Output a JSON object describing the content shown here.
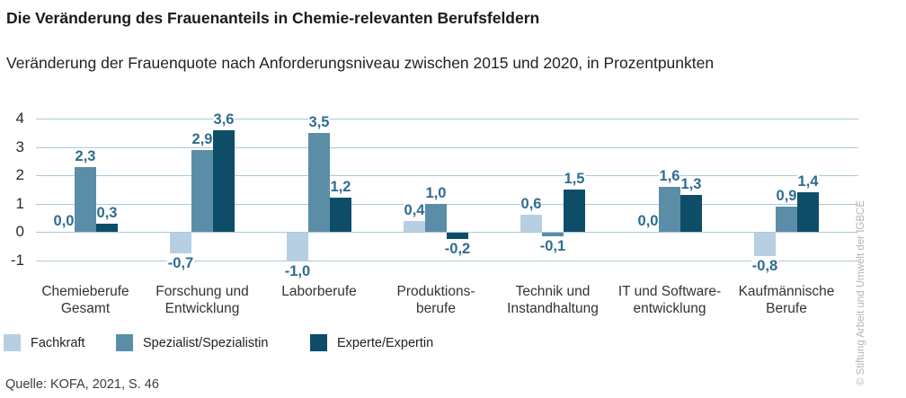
{
  "header": {
    "title": "Die Veränderung des Frauenanteils in Chemie-relevanten Berufsfeldern",
    "subtitle": "Veränderung der Frauenquote nach Anforderungsniveau zwischen 2015 und 2020, in Prozentpunkten"
  },
  "chart_data": {
    "type": "bar",
    "title": "Die Veränderung des Frauenanteils in Chemie-relevanten Berufsfeldern",
    "subtitle": "Veränderung der Frauenquote nach Anforderungsniveau zwischen 2015 und 2020, in Prozentpunkten",
    "categories": [
      "Chemieberufe Gesamt",
      "Forschung und Entwicklung",
      "Laborberufe",
      "Produktionsberufe",
      "Technik und Instandhaltung",
      "IT und Softwareentwicklung",
      "Kaufmännische Berufe"
    ],
    "category_lines": [
      [
        "Chemieberufe",
        "Gesamt"
      ],
      [
        "Forschung und",
        "Entwicklung"
      ],
      [
        "Laborberufe"
      ],
      [
        "Produktions-",
        "berufe"
      ],
      [
        "Technik und",
        "Instandhaltung"
      ],
      [
        "IT und Software-",
        "entwicklung"
      ],
      [
        "Kaufmännische",
        "Berufe"
      ]
    ],
    "series": [
      {
        "name": "Fachkraft",
        "color": "#b7cfe3",
        "values": [
          0.0,
          -0.7,
          -1.0,
          0.4,
          0.6,
          0.0,
          -0.8
        ],
        "labels": [
          "0,0",
          "-0,7",
          "-1,0",
          "0,4",
          "0,6",
          "0,0",
          "-0,8"
        ]
      },
      {
        "name": "Spezialist/Spezialistin",
        "color": "#5b8ea6",
        "values": [
          2.3,
          2.9,
          3.5,
          1.0,
          -0.1,
          1.6,
          0.9
        ],
        "labels": [
          "2,3",
          "2,9",
          "3,5",
          "1,0",
          "-0,1",
          "1,6",
          "0,9"
        ]
      },
      {
        "name": "Experte/Expertin",
        "color": "#0e4d68",
        "values": [
          0.3,
          3.6,
          1.2,
          -0.2,
          1.5,
          1.3,
          1.4
        ],
        "labels": [
          "0,3",
          "3,6",
          "1,2",
          "-0,2",
          "1,5",
          "1,3",
          "1,4"
        ]
      }
    ],
    "ylim": [
      -1,
      4
    ],
    "yticks": [
      4,
      3,
      2,
      1,
      0,
      -1
    ],
    "ytick_labels": [
      "4",
      "3",
      "2",
      "1",
      "0",
      "-1"
    ],
    "grid": true,
    "grid_color": "#aac9da",
    "value_label_color": "#2e6d8e",
    "legend_position": "bottom"
  },
  "source": "Quelle: KOFA, 2021, S. 46",
  "credit": "© Stiftung Arbeit und Umwelt der IGBCE"
}
